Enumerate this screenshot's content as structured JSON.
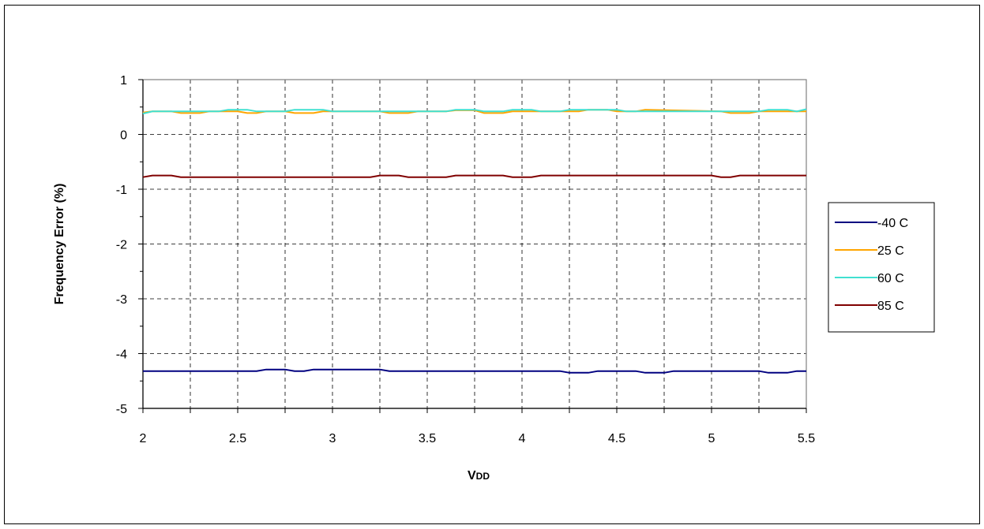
{
  "chart_data": {
    "type": "line",
    "title": "",
    "xlabel": "VDD",
    "xlabel_main": "V",
    "xlabel_sub": "DD",
    "ylabel": "Frequency Error (%)",
    "xlim": [
      2,
      5.5
    ],
    "ylim": [
      -5,
      1
    ],
    "x_ticks": [
      2,
      2.5,
      3,
      3.5,
      4,
      4.5,
      5,
      5.5
    ],
    "x_tick_labels": [
      "2",
      "2.5",
      "3",
      "3.5",
      "4",
      "4.5",
      "5",
      "5.5"
    ],
    "y_ticks": [
      1,
      0,
      -1,
      -2,
      -3,
      -4,
      -5
    ],
    "y_tick_labels": [
      "1",
      "0",
      "-1",
      "-2",
      "-3",
      "-4",
      "-5"
    ],
    "grid": true,
    "legend_position": "right",
    "series": [
      {
        "name": "-40 C",
        "color": "#000080",
        "x": [
          2,
          2.6,
          2.65,
          2.75,
          2.8,
          2.85,
          2.9,
          3.25,
          3.3,
          4.2,
          4.25,
          4.35,
          4.4,
          4.6,
          4.65,
          4.75,
          4.8,
          5.25,
          5.3,
          5.4,
          5.45,
          5.5
        ],
        "y": [
          -4.32,
          -4.32,
          -4.29,
          -4.29,
          -4.32,
          -4.32,
          -4.29,
          -4.29,
          -4.32,
          -4.32,
          -4.35,
          -4.35,
          -4.32,
          -4.32,
          -4.35,
          -4.35,
          -4.32,
          -4.32,
          -4.35,
          -4.35,
          -4.32,
          -4.32
        ]
      },
      {
        "name": "25 C",
        "color": "#ffa500",
        "x": [
          2,
          2.05,
          2.15,
          2.2,
          2.3,
          2.35,
          2.5,
          2.55,
          2.6,
          2.65,
          2.75,
          2.8,
          2.9,
          2.95,
          3.25,
          3.3,
          3.4,
          3.45,
          3.6,
          3.65,
          3.75,
          3.8,
          3.9,
          3.95,
          4.3,
          4.35,
          4.45,
          4.5,
          4.6,
          4.65,
          5.05,
          5.1,
          5.2,
          5.25,
          5.5
        ],
        "y": [
          0.4,
          0.42,
          0.42,
          0.39,
          0.39,
          0.42,
          0.42,
          0.39,
          0.39,
          0.42,
          0.42,
          0.39,
          0.39,
          0.42,
          0.42,
          0.39,
          0.39,
          0.42,
          0.42,
          0.44,
          0.44,
          0.39,
          0.39,
          0.42,
          0.42,
          0.45,
          0.45,
          0.42,
          0.42,
          0.45,
          0.42,
          0.39,
          0.39,
          0.42,
          0.42
        ]
      },
      {
        "name": "60 C",
        "color": "#40e0d0",
        "x": [
          2,
          2.05,
          2.4,
          2.45,
          2.55,
          2.6,
          2.75,
          2.8,
          2.95,
          3.0,
          3.6,
          3.65,
          3.75,
          3.8,
          3.9,
          3.95,
          4.05,
          4.1,
          4.2,
          4.25,
          4.5,
          4.55,
          5.25,
          5.3,
          5.4,
          5.45,
          5.5
        ],
        "y": [
          0.38,
          0.42,
          0.42,
          0.45,
          0.45,
          0.42,
          0.42,
          0.45,
          0.45,
          0.42,
          0.42,
          0.45,
          0.45,
          0.42,
          0.42,
          0.45,
          0.45,
          0.42,
          0.42,
          0.45,
          0.45,
          0.42,
          0.42,
          0.45,
          0.45,
          0.42,
          0.46
        ]
      },
      {
        "name": "85 C",
        "color": "#800000",
        "x": [
          2,
          2.05,
          2.15,
          2.2,
          3.2,
          3.25,
          3.35,
          3.4,
          3.6,
          3.65,
          3.9,
          3.95,
          4.05,
          4.1,
          5.0,
          5.05,
          5.1,
          5.15,
          5.5
        ],
        "y": [
          -0.78,
          -0.75,
          -0.75,
          -0.78,
          -0.78,
          -0.75,
          -0.75,
          -0.78,
          -0.78,
          -0.75,
          -0.75,
          -0.78,
          -0.78,
          -0.75,
          -0.75,
          -0.78,
          -0.78,
          -0.75,
          -0.75
        ]
      }
    ]
  }
}
